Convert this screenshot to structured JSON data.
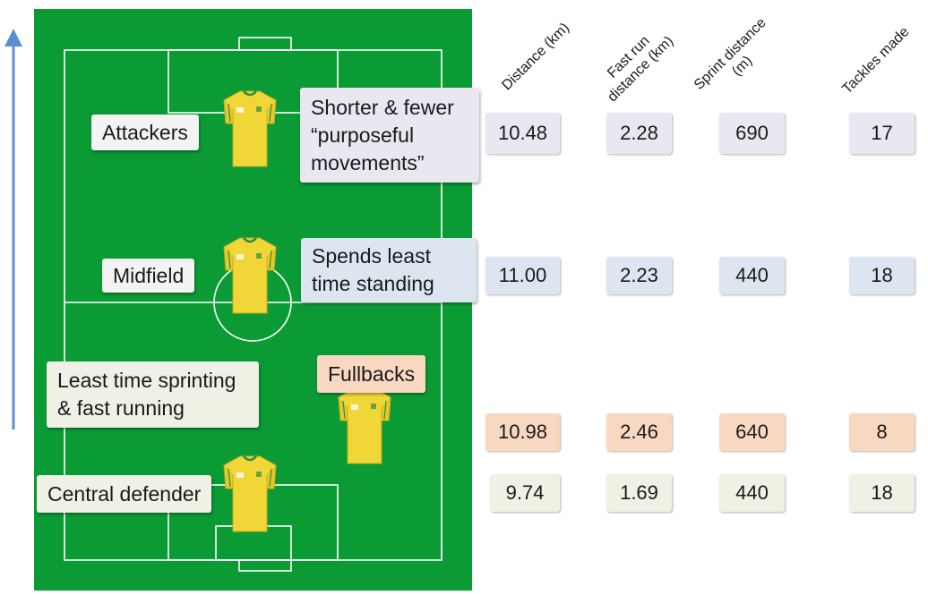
{
  "labels": {
    "attackers": "Attackers",
    "attackers_note": "Shorter & fewer\n“purposeful\nmovements”",
    "midfield": "Midfield",
    "midfield_note": "Spends least\ntime standing",
    "fullbacks": "Fullbacks",
    "fullbacks_note": "Least time sprinting\n& fast running",
    "central_defender": "Central defender"
  },
  "columns": [
    "Distance (km)",
    "Fast run\ndistance (km)",
    "Sprint distance\n(m)",
    "Tackles made"
  ],
  "rows": [
    {
      "role": "attackers",
      "values": [
        "10.48",
        "2.28",
        "690",
        "17"
      ]
    },
    {
      "role": "midfield",
      "values": [
        "11.00",
        "2.23",
        "440",
        "18"
      ]
    },
    {
      "role": "fullbacks",
      "values": [
        "10.98",
        "2.46",
        "640",
        "8"
      ]
    },
    {
      "role": "central_defender",
      "values": [
        "9.74",
        "1.69",
        "440",
        "18"
      ]
    }
  ],
  "colors": {
    "pitch": "#0b9b35",
    "arrow": "#5b8fd0",
    "attackers": "#ebe7f0",
    "midfield": "#dde5f0",
    "fullbacks": "#f9d8c2",
    "central_defender": "#eef1e4",
    "shirt": "#f1d638",
    "shirt_trim": "#2e8b3e"
  }
}
